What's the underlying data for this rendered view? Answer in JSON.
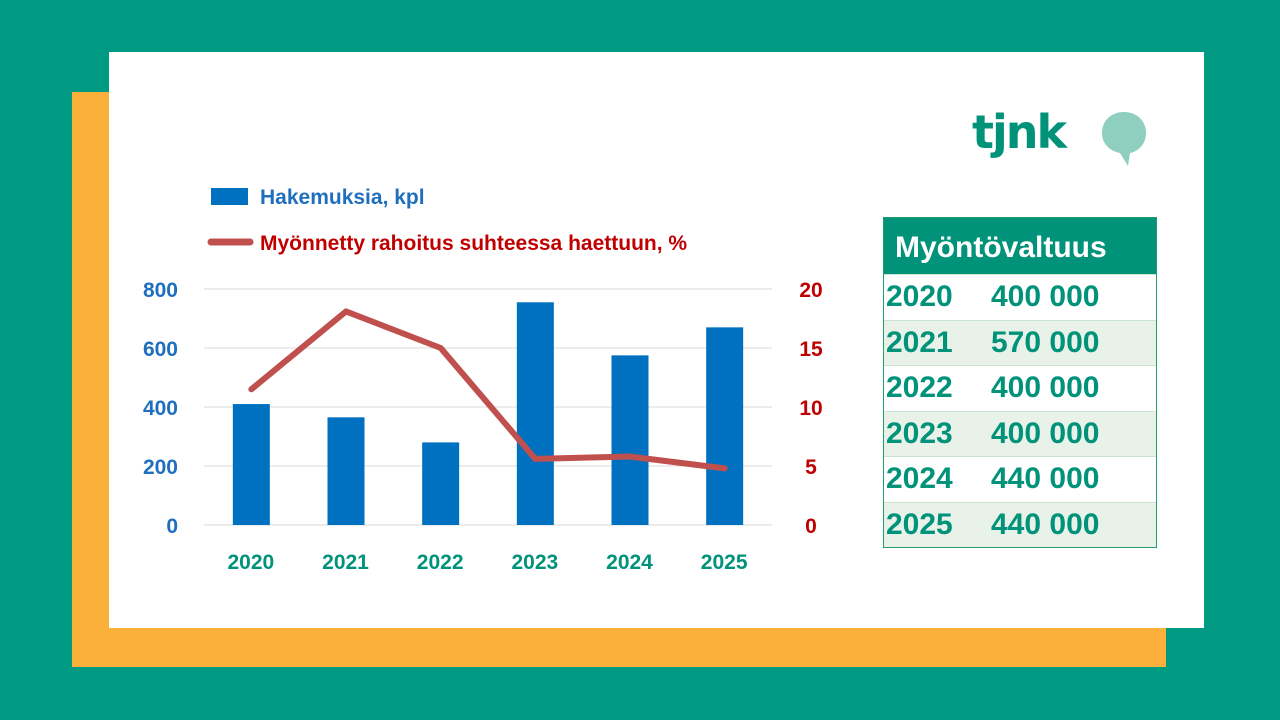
{
  "colors": {
    "background": "#009a82",
    "orange_panel": "#fbb03b",
    "card": "#ffffff",
    "bar": "#0070c0",
    "line": "#c0504d",
    "left_axis_text": "#1f6fbf",
    "right_axis_text": "#c00000",
    "category_text": "#00937a",
    "brand": "#00937a",
    "bubble": "#8fcfbf"
  },
  "logo": {
    "text": "tjnk",
    "icon": "speech-bubble-icon"
  },
  "chart_data": {
    "type": "bar",
    "categories": [
      "2020",
      "2021",
      "2022",
      "2023",
      "2024",
      "2025"
    ],
    "series": [
      {
        "name": "Hakemuksia, kpl",
        "type": "bar",
        "axis": "left",
        "values": [
          410,
          365,
          280,
          755,
          575,
          670
        ]
      },
      {
        "name": "Myönnetty rahoitus suhteessa haettuun, %",
        "type": "line",
        "axis": "right",
        "values": [
          11.5,
          18.1,
          15.0,
          5.6,
          5.8,
          4.8
        ]
      }
    ],
    "y_left": {
      "range": [
        0,
        800
      ],
      "ticks": [
        "0",
        "200",
        "400",
        "600",
        "800"
      ]
    },
    "y_right": {
      "range": [
        0,
        20
      ],
      "ticks": [
        "0",
        "5",
        "10",
        "15",
        "20"
      ]
    },
    "grid": true,
    "legend_position": "top-left"
  },
  "table": {
    "header": "Myöntövaltuus",
    "rows": [
      {
        "year": "2020",
        "amount": "400 000"
      },
      {
        "year": "2021",
        "amount": "570 000"
      },
      {
        "year": "2022",
        "amount": "400 000"
      },
      {
        "year": "2023",
        "amount": "400 000"
      },
      {
        "year": "2024",
        "amount": "440 000"
      },
      {
        "year": "2025",
        "amount": "440 000"
      }
    ]
  }
}
